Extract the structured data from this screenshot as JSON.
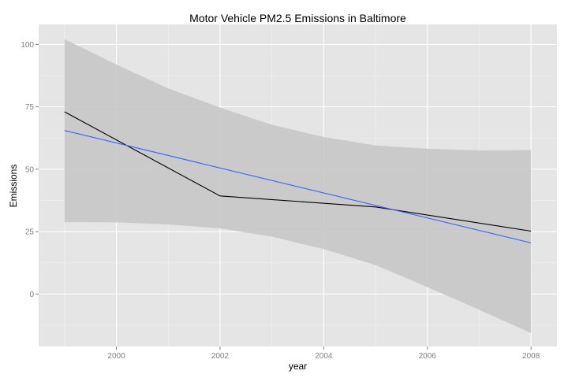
{
  "chart_data": {
    "type": "line",
    "title": "Motor Vehicle PM2.5 Emissions in Baltimore",
    "xlabel": "year",
    "ylabel": "Emissions",
    "xlim": [
      1998.5,
      2008.5
    ],
    "ylim": [
      -21,
      108
    ],
    "x_ticks": [
      2000,
      2002,
      2004,
      2006,
      2008
    ],
    "y_ticks": [
      0,
      25,
      50,
      75,
      100
    ],
    "x_minor": [
      1999,
      2001,
      2003,
      2005,
      2007
    ],
    "y_minor": [
      -12.5,
      12.5,
      37.5,
      62.5,
      87.5
    ],
    "grid": true,
    "legend": "none",
    "colors": {
      "panel_bg": "#e5e5e5",
      "grid": "#ffffff",
      "band": "#c6c6c6",
      "observed": "#000000",
      "fit": "#3366ff"
    },
    "series": [
      {
        "kind": "observed",
        "x": [
          1999,
          2002,
          2005,
          2008
        ],
        "y": [
          73.0,
          39.3,
          34.9,
          25.2
        ]
      },
      {
        "kind": "fit",
        "x": [
          1999,
          2008
        ],
        "y": [
          65.5,
          20.5
        ]
      }
    ],
    "confidence_band": {
      "x": [
        1999,
        2000,
        2001,
        2002,
        2003,
        2004,
        2005,
        2006,
        2007,
        2008
      ],
      "lower": [
        28.8,
        28.7,
        27.9,
        26.3,
        23.0,
        18.0,
        11.6,
        2.8,
        -6.3,
        -15.6
      ],
      "upper": [
        102.1,
        91.9,
        82.4,
        74.7,
        67.8,
        62.9,
        59.5,
        58.2,
        57.5,
        57.7
      ]
    }
  }
}
